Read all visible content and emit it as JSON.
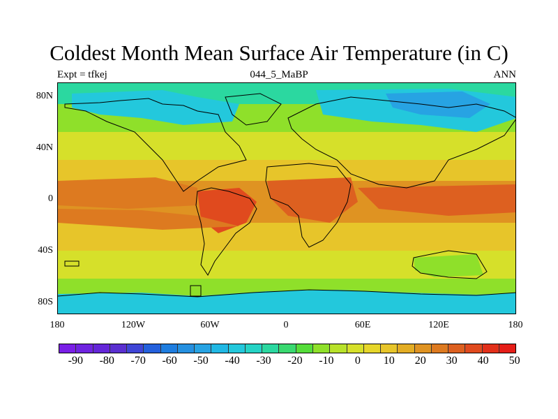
{
  "header": {
    "title": "Coldest Month Mean Surface Air Temperature (in C)",
    "experiment": "Expt = tfkej",
    "period": "044_5_MaBP",
    "season": "ANN"
  },
  "axes": {
    "y_ticks": [
      "80N",
      "40N",
      "0",
      "40S",
      "80S"
    ],
    "x_ticks": [
      "180",
      "120W",
      "60W",
      "0",
      "60E",
      "120E",
      "180"
    ]
  },
  "colorbar": {
    "labels": [
      "-90",
      "-80",
      "-70",
      "-60",
      "-50",
      "-40",
      "-30",
      "-20",
      "-10",
      "0",
      "10",
      "20",
      "30",
      "40",
      "50"
    ],
    "colors": [
      "#7a1fe6",
      "#6f24e0",
      "#6426d8",
      "#5a2fd0",
      "#3f45d6",
      "#2460dc",
      "#1e7ddf",
      "#2590e0",
      "#27a3e3",
      "#21b8e4",
      "#23c8dc",
      "#25d3c5",
      "#2bd8a0",
      "#3ad970",
      "#55dd3a",
      "#8fe02a",
      "#b8e22a",
      "#d6e02a",
      "#e6d62a",
      "#e7c52a",
      "#e3ad24",
      "#df9322",
      "#dd7a20",
      "#dd6020",
      "#e04a1e",
      "#e2301a",
      "#e51e18"
    ]
  },
  "map_colors": {
    "polar": "#23c8dc",
    "subpolar": "#2bd8a0",
    "cool": "#8fe02a",
    "temperate": "#d6e02a",
    "warm": "#e7c52a",
    "hot": "#df9322",
    "tropical": "#dd6020",
    "very_hot": "#e04a1e"
  }
}
